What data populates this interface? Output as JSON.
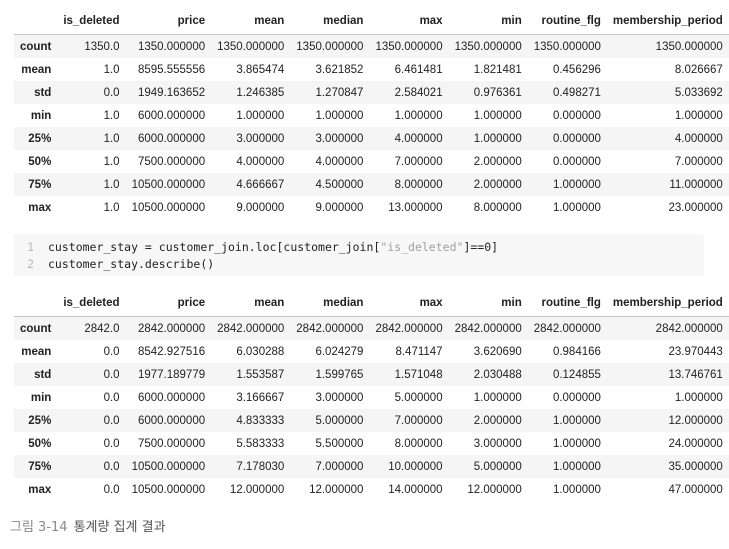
{
  "columns": [
    "",
    "is_deleted",
    "price",
    "mean",
    "median",
    "max",
    "min",
    "routine_flg",
    "membership_period"
  ],
  "table_1": {
    "rows": [
      [
        "count",
        "1350.0",
        "1350.000000",
        "1350.000000",
        "1350.000000",
        "1350.000000",
        "1350.000000",
        "1350.000000",
        "1350.000000"
      ],
      [
        "mean",
        "1.0",
        "8595.555556",
        "3.865474",
        "3.621852",
        "6.461481",
        "1.821481",
        "0.456296",
        "8.026667"
      ],
      [
        "std",
        "0.0",
        "1949.163652",
        "1.246385",
        "1.270847",
        "2.584021",
        "0.976361",
        "0.498271",
        "5.033692"
      ],
      [
        "min",
        "1.0",
        "6000.000000",
        "1.000000",
        "1.000000",
        "1.000000",
        "1.000000",
        "0.000000",
        "1.000000"
      ],
      [
        "25%",
        "1.0",
        "6000.000000",
        "3.000000",
        "3.000000",
        "4.000000",
        "1.000000",
        "0.000000",
        "4.000000"
      ],
      [
        "50%",
        "1.0",
        "7500.000000",
        "4.000000",
        "4.000000",
        "7.000000",
        "2.000000",
        "0.000000",
        "7.000000"
      ],
      [
        "75%",
        "1.0",
        "10500.000000",
        "4.666667",
        "4.500000",
        "8.000000",
        "2.000000",
        "1.000000",
        "11.000000"
      ],
      [
        "max",
        "1.0",
        "10500.000000",
        "9.000000",
        "9.000000",
        "13.000000",
        "8.000000",
        "1.000000",
        "23.000000"
      ]
    ]
  },
  "code": {
    "line_1": {
      "num": "1",
      "before": "customer_stay = customer_join.loc[customer_join[",
      "string": "\"is_deleted\"",
      "after": "]==0]"
    },
    "line_2": {
      "num": "2",
      "text": "customer_stay.describe()"
    }
  },
  "table_2": {
    "rows": [
      [
        "count",
        "2842.0",
        "2842.000000",
        "2842.000000",
        "2842.000000",
        "2842.000000",
        "2842.000000",
        "2842.000000",
        "2842.000000"
      ],
      [
        "mean",
        "0.0",
        "8542.927516",
        "6.030288",
        "6.024279",
        "8.471147",
        "3.620690",
        "0.984166",
        "23.970443"
      ],
      [
        "std",
        "0.0",
        "1977.189779",
        "1.553587",
        "1.599765",
        "1.571048",
        "2.030488",
        "0.124855",
        "13.746761"
      ],
      [
        "min",
        "0.0",
        "6000.000000",
        "3.166667",
        "3.000000",
        "5.000000",
        "1.000000",
        "0.000000",
        "1.000000"
      ],
      [
        "25%",
        "0.0",
        "6000.000000",
        "4.833333",
        "5.000000",
        "7.000000",
        "2.000000",
        "1.000000",
        "12.000000"
      ],
      [
        "50%",
        "0.0",
        "7500.000000",
        "5.583333",
        "5.500000",
        "8.000000",
        "3.000000",
        "1.000000",
        "24.000000"
      ],
      [
        "75%",
        "0.0",
        "10500.000000",
        "7.178030",
        "7.000000",
        "10.000000",
        "5.000000",
        "1.000000",
        "35.000000"
      ],
      [
        "max",
        "0.0",
        "10500.000000",
        "12.000000",
        "12.000000",
        "14.000000",
        "12.000000",
        "1.000000",
        "47.000000"
      ]
    ]
  },
  "caption": {
    "number": "그림 3-14",
    "text": "통계량 집계 결과"
  }
}
